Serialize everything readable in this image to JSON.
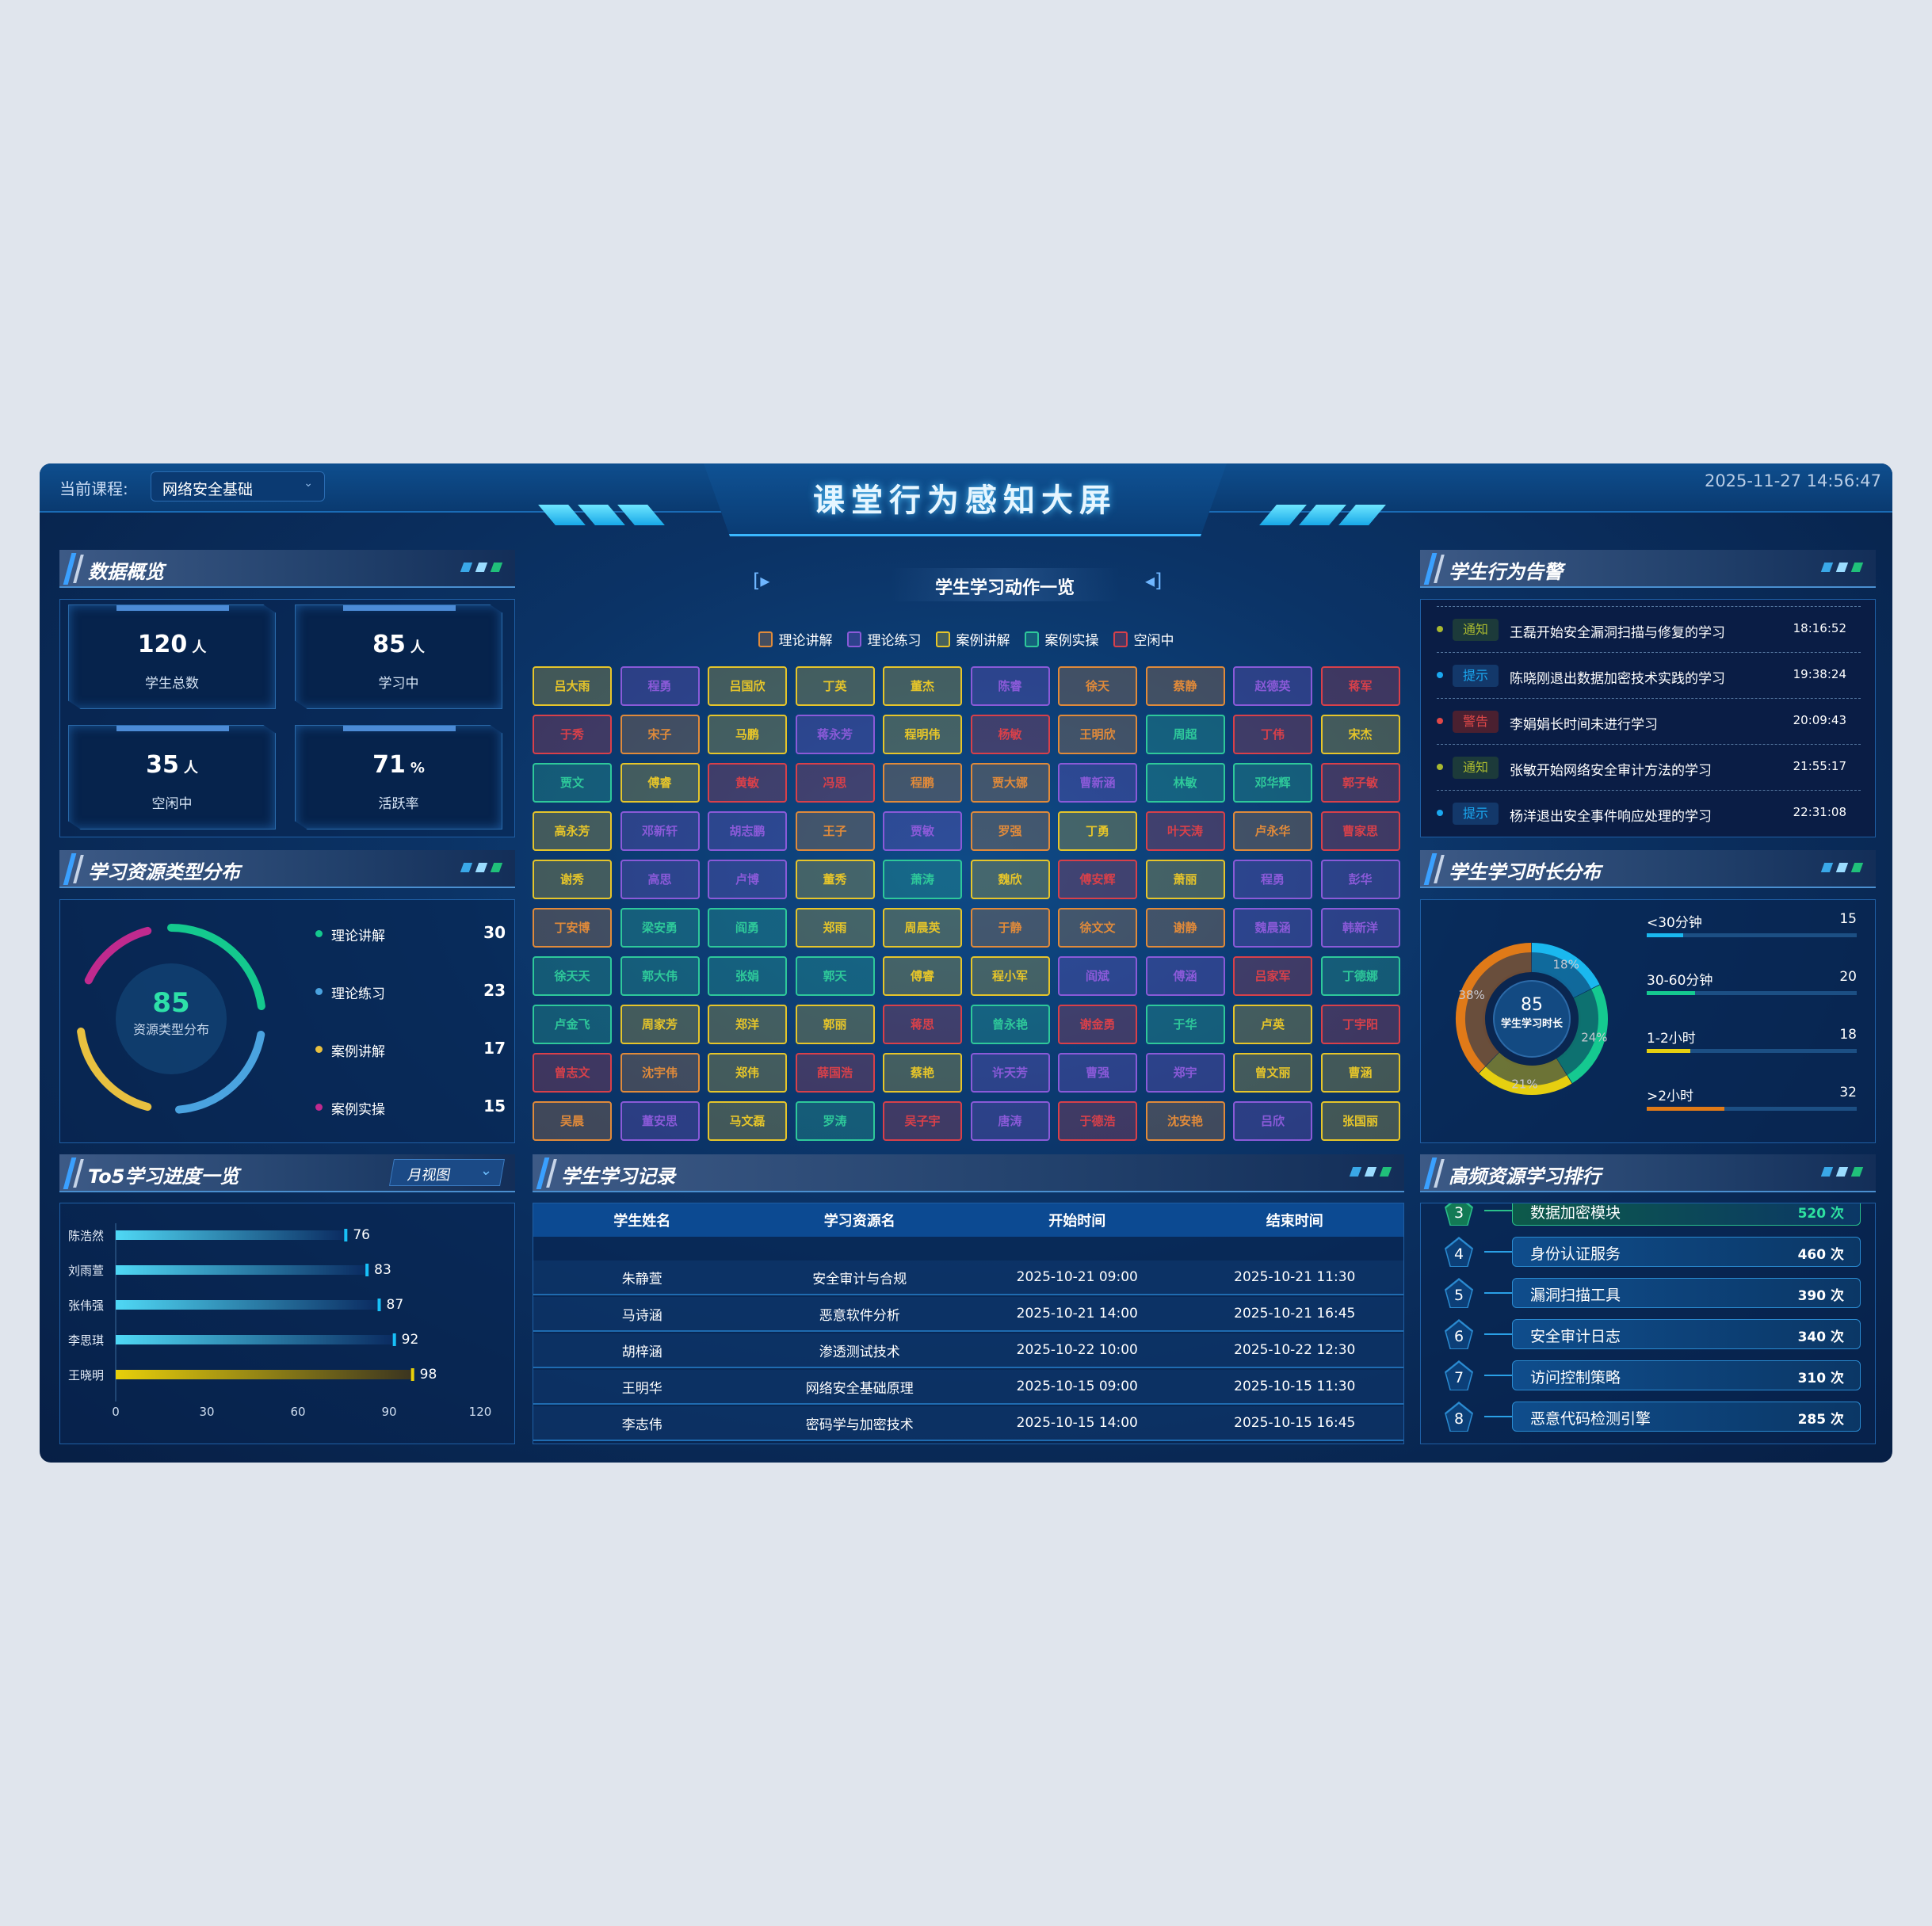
{
  "header": {
    "course_label": "当前课程:",
    "course_value": "网络安全基础",
    "title": "课堂行为感知大屏",
    "datetime": "2025-11-27 14:56:47"
  },
  "overview": {
    "title": "数据概览",
    "stats": [
      {
        "value": "120",
        "unit": "人",
        "label": "学生总数"
      },
      {
        "value": "85",
        "unit": "人",
        "label": "学习中"
      },
      {
        "value": "35",
        "unit": "人",
        "label": "空闲中"
      },
      {
        "value": "71",
        "unit": "%",
        "label": "活跃率"
      }
    ]
  },
  "resource_types": {
    "title": "学习资源类型分布",
    "center_value": "85",
    "center_label": "资源类型分布",
    "items": [
      {
        "name": "理论讲解",
        "value": 30,
        "color": "#14c98e"
      },
      {
        "name": "理论练习",
        "value": 23,
        "color": "#4aa3e0"
      },
      {
        "name": "案例讲解",
        "value": 17,
        "color": "#e8c040"
      },
      {
        "name": "案例实操",
        "value": 15,
        "color": "#c02a8e"
      }
    ]
  },
  "progress": {
    "title": "To5学习进度一览",
    "view_select": "月视图",
    "chart_data": {
      "type": "bar",
      "orientation": "horizontal",
      "categories": [
        "陈浩然",
        "刘雨萱",
        "张伟强",
        "李思琪",
        "王晓明"
      ],
      "values": [
        76,
        83,
        87,
        92,
        98
      ],
      "xlim": [
        0,
        120
      ],
      "xticks": [
        "0",
        "30",
        "60",
        "90",
        "120"
      ],
      "colors": {
        "default": "#4fd8f5",
        "top": "#e8d00a"
      }
    }
  },
  "actions": {
    "title": "学生学习动作一览",
    "legend": [
      {
        "key": "o",
        "label": "理论讲解",
        "color": "#e08a3a"
      },
      {
        "key": "p",
        "label": "理论练习",
        "color": "#8a5ad8"
      },
      {
        "key": "y",
        "label": "案例讲解",
        "color": "#e6c52a"
      },
      {
        "key": "g",
        "label": "案例实操",
        "color": "#2ec89a"
      },
      {
        "key": "r",
        "label": "空闲中",
        "color": "#d8404a"
      }
    ],
    "students": [
      [
        "吕大雨",
        "y"
      ],
      [
        "程勇",
        "p"
      ],
      [
        "吕国欣",
        "y"
      ],
      [
        "丁英",
        "y"
      ],
      [
        "董杰",
        "y"
      ],
      [
        "陈睿",
        "p"
      ],
      [
        "徐天",
        "o"
      ],
      [
        "蔡静",
        "o"
      ],
      [
        "赵德英",
        "p"
      ],
      [
        "蒋军",
        "r"
      ],
      [
        "于秀",
        "r"
      ],
      [
        "宋子",
        "o"
      ],
      [
        "马鹏",
        "y"
      ],
      [
        "蒋永芳",
        "p"
      ],
      [
        "程明伟",
        "y"
      ],
      [
        "杨敏",
        "r"
      ],
      [
        "王明欣",
        "o"
      ],
      [
        "周超",
        "g"
      ],
      [
        "丁伟",
        "r"
      ],
      [
        "宋杰",
        "y"
      ],
      [
        "贾文",
        "g"
      ],
      [
        "傅睿",
        "y"
      ],
      [
        "黄敏",
        "r"
      ],
      [
        "冯思",
        "r"
      ],
      [
        "程鹏",
        "o"
      ],
      [
        "贾大娜",
        "o"
      ],
      [
        "曹新涵",
        "p"
      ],
      [
        "林敏",
        "g"
      ],
      [
        "邓华辉",
        "g"
      ],
      [
        "郭子敏",
        "r"
      ],
      [
        "高永芳",
        "y"
      ],
      [
        "邓新轩",
        "p"
      ],
      [
        "胡志鹏",
        "p"
      ],
      [
        "王子",
        "o"
      ],
      [
        "贾敏",
        "p"
      ],
      [
        "罗强",
        "o"
      ],
      [
        "丁勇",
        "y"
      ],
      [
        "叶天涛",
        "r"
      ],
      [
        "卢永华",
        "o"
      ],
      [
        "曹家思",
        "r"
      ],
      [
        "谢秀",
        "y"
      ],
      [
        "高思",
        "p"
      ],
      [
        "卢博",
        "p"
      ],
      [
        "董秀",
        "y"
      ],
      [
        "萧涛",
        "g"
      ],
      [
        "魏欣",
        "y"
      ],
      [
        "傅安辉",
        "r"
      ],
      [
        "萧丽",
        "y"
      ],
      [
        "程勇",
        "p"
      ],
      [
        "彭华",
        "p"
      ],
      [
        "丁安博",
        "o"
      ],
      [
        "梁安勇",
        "g"
      ],
      [
        "阎勇",
        "g"
      ],
      [
        "郑雨",
        "y"
      ],
      [
        "周晨英",
        "y"
      ],
      [
        "于静",
        "o"
      ],
      [
        "徐文文",
        "o"
      ],
      [
        "谢静",
        "o"
      ],
      [
        "魏晨涵",
        "p"
      ],
      [
        "韩新洋",
        "p"
      ],
      [
        "徐天天",
        "g"
      ],
      [
        "郭大伟",
        "g"
      ],
      [
        "张娟",
        "g"
      ],
      [
        "郭天",
        "g"
      ],
      [
        "傅睿",
        "y"
      ],
      [
        "程小军",
        "y"
      ],
      [
        "阎斌",
        "p"
      ],
      [
        "傅涵",
        "p"
      ],
      [
        "吕家军",
        "r"
      ],
      [
        "丁德娜",
        "g"
      ],
      [
        "卢金飞",
        "g"
      ],
      [
        "周家芳",
        "y"
      ],
      [
        "郑洋",
        "y"
      ],
      [
        "郭丽",
        "y"
      ],
      [
        "蒋思",
        "r"
      ],
      [
        "曾永艳",
        "g"
      ],
      [
        "谢金勇",
        "r"
      ],
      [
        "于华",
        "g"
      ],
      [
        "卢英",
        "y"
      ],
      [
        "丁宇阳",
        "r"
      ],
      [
        "曾志文",
        "r"
      ],
      [
        "沈宇伟",
        "o"
      ],
      [
        "郑伟",
        "y"
      ],
      [
        "薛国浩",
        "r"
      ],
      [
        "蔡艳",
        "y"
      ],
      [
        "许天芳",
        "p"
      ],
      [
        "曹强",
        "p"
      ],
      [
        "郑宇",
        "p"
      ],
      [
        "曾文丽",
        "y"
      ],
      [
        "曹涵",
        "y"
      ],
      [
        "吴晨",
        "o"
      ],
      [
        "董安思",
        "p"
      ],
      [
        "马文磊",
        "y"
      ],
      [
        "罗涛",
        "g"
      ],
      [
        "吴子宇",
        "r"
      ],
      [
        "唐涛",
        "p"
      ],
      [
        "于德浩",
        "r"
      ],
      [
        "沈安艳",
        "o"
      ],
      [
        "吕欣",
        "p"
      ],
      [
        "张国丽",
        "y"
      ]
    ]
  },
  "records": {
    "title": "学生学习记录",
    "columns": [
      "学生姓名",
      "学习资源名",
      "开始时间",
      "结束时间"
    ],
    "rows": [
      [
        "朱静萱",
        "安全审计与合规",
        "2025-10-21 09:00",
        "2025-10-21 11:30"
      ],
      [
        "马诗涵",
        "恶意软件分析",
        "2025-10-21 14:00",
        "2025-10-21 16:45"
      ],
      [
        "胡梓涵",
        "渗透测试技术",
        "2025-10-22 10:00",
        "2025-10-22 12:30"
      ],
      [
        "王明华",
        "网络安全基础原理",
        "2025-10-15 09:00",
        "2025-10-15 11:30"
      ],
      [
        "李志伟",
        "密码学与加密技术",
        "2025-10-15 14:00",
        "2025-10-15 16:45"
      ]
    ]
  },
  "alerts": {
    "title": "学生行为告警",
    "items": [
      {
        "tag": "通知",
        "level": "notice",
        "message": "王磊开始安全漏洞扫描与修复的学习",
        "time": "18:16:52"
      },
      {
        "tag": "提示",
        "level": "tip",
        "message": "陈晓刚退出数据加密技术实践的学习",
        "time": "19:38:24"
      },
      {
        "tag": "警告",
        "level": "warn",
        "message": "李娟娟长时间未进行学习",
        "time": "20:09:43"
      },
      {
        "tag": "通知",
        "level": "notice",
        "message": "张敏开始网络安全审计方法的学习",
        "time": "21:55:17"
      },
      {
        "tag": "提示",
        "level": "tip",
        "message": "杨洋退出安全事件响应处理的学习",
        "time": "22:31:08"
      }
    ],
    "level_colors": {
      "notice": "#a8b830",
      "tip": "#1aa8f0",
      "warn": "#e04848"
    }
  },
  "duration": {
    "title": "学生学习时长分布",
    "center_value": "85",
    "center_label": "学生学习时长",
    "chart_data": {
      "type": "pie",
      "donut": true,
      "categories": [
        "<30分钟",
        "30-60分钟",
        "1-2小时",
        ">2小时"
      ],
      "values": [
        15,
        20,
        18,
        32
      ],
      "percent_labels": [
        "18%",
        "24%",
        "21%",
        "38%"
      ],
      "colors": [
        "#1ab8ef",
        "#15c990",
        "#e6cf10",
        "#e07a18"
      ]
    }
  },
  "ranking": {
    "title": "高频资源学习排行",
    "items": [
      {
        "rank": "3",
        "name": "数据加密模块",
        "count": "520 次",
        "highlight": true
      },
      {
        "rank": "4",
        "name": "身份认证服务",
        "count": "460 次"
      },
      {
        "rank": "5",
        "name": "漏洞扫描工具",
        "count": "390 次"
      },
      {
        "rank": "6",
        "name": "安全审计日志",
        "count": "340 次"
      },
      {
        "rank": "7",
        "name": "访问控制策略",
        "count": "310 次"
      },
      {
        "rank": "8",
        "name": "恶意代码检测引擎",
        "count": "285 次"
      }
    ]
  }
}
